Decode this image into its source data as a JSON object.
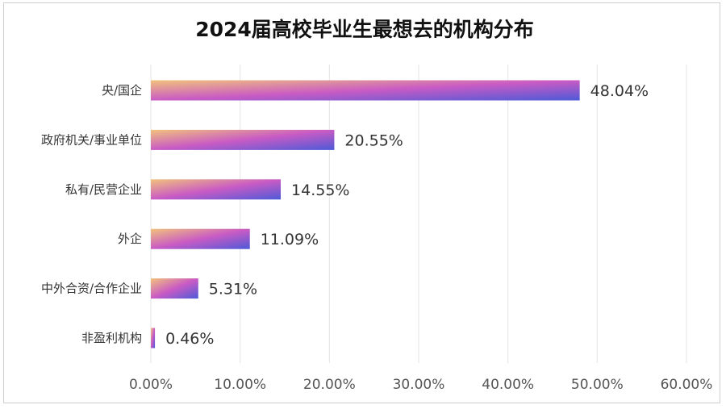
{
  "chart_data": {
    "type": "bar",
    "orientation": "horizontal",
    "title": "2024届高校毕业生最想去的机构分布",
    "categories": [
      "央/国企",
      "政府机关/事业单位",
      "私有/民营企业",
      "外企",
      "中外合资/合作企业",
      "非盈利机构"
    ],
    "values": [
      48.04,
      20.55,
      14.55,
      11.09,
      5.31,
      0.46
    ],
    "data_labels": [
      "48.04%",
      "20.55%",
      "14.55%",
      "11.09%",
      "5.31%",
      "0.46%"
    ],
    "xlim": [
      0,
      60
    ],
    "x_ticks": [
      0,
      10,
      20,
      30,
      40,
      50,
      60
    ],
    "x_tick_labels": [
      "0.00%",
      "10.00%",
      "20.00%",
      "30.00%",
      "40.00%",
      "50.00%",
      "60.00%"
    ],
    "grid": "vertical",
    "legend": "none",
    "bar_gradient": [
      "#f2c27c",
      "#c95bc4",
      "#4d5ad8"
    ]
  }
}
